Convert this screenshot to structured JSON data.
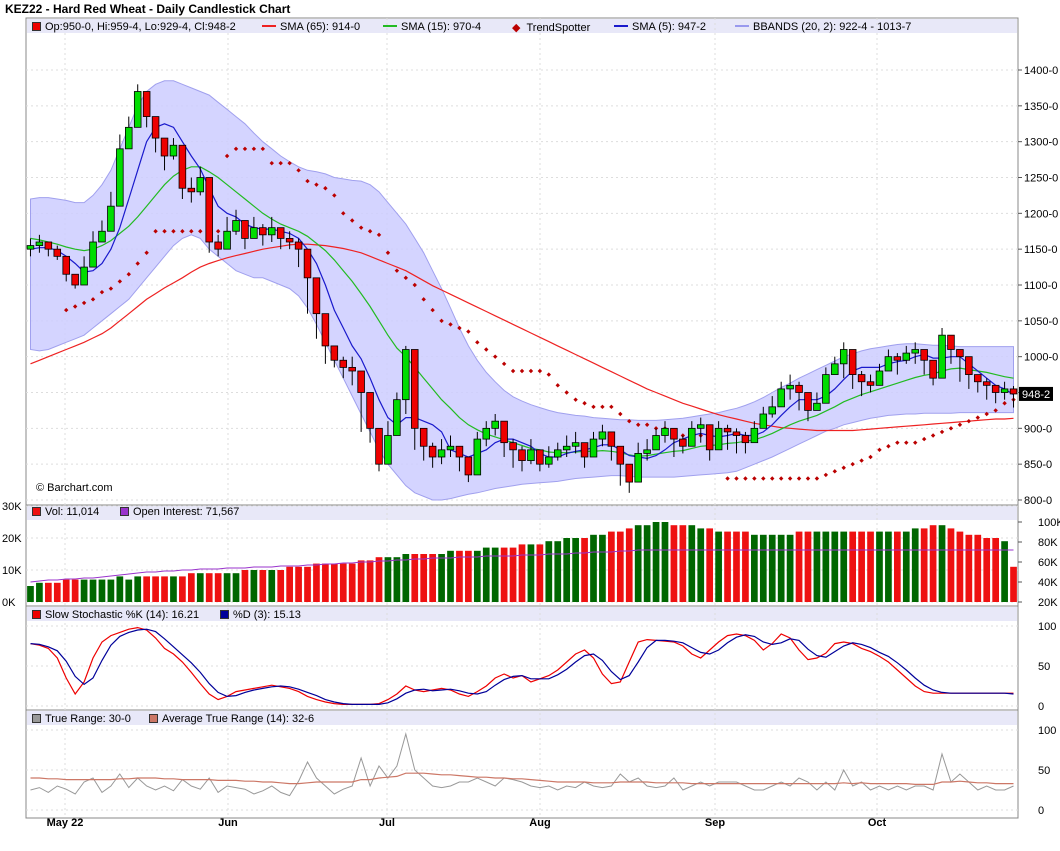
{
  "title": "KEZ22 - Hard Red Wheat - Daily Candlestick Chart",
  "watermark": "© Barchart.com",
  "legends": {
    "ohlc": "Op:950-0, Hi:959-4, Lo:929-4, Cl:948-2",
    "sma65": "SMA (65): 914-0",
    "sma15": "SMA (15): 970-4",
    "trendspotter": "TrendSpotter",
    "sma5": "SMA (5): 947-2",
    "bbands": "BBANDS (20, 2): 922-4 - 1013-7",
    "vol": "Vol: 11,014",
    "oi": "Open Interest: 71,567",
    "stochK": "Slow Stochastic %K (14): 16.21",
    "stochD": "%D (3): 15.13",
    "tr": "True Range: 30-0",
    "atr": "Average True Range (14): 32-6"
  },
  "last_price_tag": "948-2",
  "colors": {
    "up": "#00dd00",
    "down": "#ee0000",
    "sma65": "#ee2222",
    "sma15": "#22bb22",
    "sma5": "#1a1acc",
    "band": "#ccccff",
    "trend": "#bb0000",
    "volUp": "#006600",
    "volDown": "#ee1111",
    "oi": "#9933cc",
    "k": "#ee0000",
    "d": "#000099",
    "tr": "#999999",
    "atr": "#cc7766"
  },
  "chart_data": {
    "type": "candlestick",
    "dates_label": [
      "May 22",
      "Jun",
      "Jul",
      "Aug",
      "Sep",
      "Oct"
    ],
    "price_ylim": [
      800,
      1400
    ],
    "price_ticks": [
      "1400-0",
      "1350-0",
      "1300-0",
      "1250-0",
      "1200-0",
      "1150-0",
      "1100-0",
      "1050-0",
      "1000-0",
      "950-0",
      "900-0",
      "850-0",
      "800-0"
    ],
    "vol_ticks": [
      "30K",
      "20K",
      "10K",
      "0K"
    ],
    "oi_ticks": [
      "100K",
      "80K",
      "60K",
      "40K",
      "20K"
    ],
    "osc_ticks": [
      "100",
      "50",
      "0"
    ],
    "close": [
      1155,
      1160,
      1150,
      1140,
      1115,
      1100,
      1125,
      1160,
      1175,
      1210,
      1290,
      1320,
      1370,
      1335,
      1305,
      1280,
      1295,
      1235,
      1230,
      1250,
      1160,
      1150,
      1175,
      1190,
      1165,
      1180,
      1170,
      1180,
      1165,
      1160,
      1150,
      1110,
      1060,
      1015,
      995,
      985,
      980,
      950,
      900,
      850,
      890,
      940,
      1010,
      900,
      875,
      860,
      870,
      875,
      860,
      835,
      885,
      900,
      910,
      880,
      870,
      855,
      870,
      850,
      860,
      870,
      875,
      880,
      860,
      885,
      895,
      875,
      850,
      825,
      865,
      870,
      890,
      900,
      885,
      875,
      900,
      905,
      870,
      900,
      895,
      890,
      880,
      900,
      920,
      930,
      955,
      960,
      950,
      925,
      935,
      975,
      990,
      1010,
      975,
      965,
      960,
      980,
      1000,
      995,
      1005,
      1010,
      995,
      970,
      1030,
      1010,
      1000,
      975,
      965,
      960,
      950,
      955,
      948
    ],
    "high": [
      1165,
      1170,
      1160,
      1155,
      1125,
      1115,
      1140,
      1175,
      1190,
      1230,
      1310,
      1335,
      1380,
      1350,
      1320,
      1300,
      1305,
      1255,
      1250,
      1265,
      1180,
      1170,
      1195,
      1205,
      1185,
      1195,
      1185,
      1195,
      1180,
      1175,
      1165,
      1125,
      1075,
      1030,
      1010,
      1000,
      1000,
      965,
      910,
      900,
      910,
      950,
      1015,
      920,
      895,
      880,
      885,
      890,
      875,
      860,
      895,
      910,
      920,
      900,
      885,
      875,
      885,
      870,
      875,
      880,
      890,
      895,
      880,
      895,
      905,
      890,
      870,
      845,
      880,
      885,
      900,
      910,
      900,
      890,
      910,
      915,
      885,
      910,
      905,
      900,
      895,
      910,
      930,
      945,
      965,
      975,
      965,
      945,
      950,
      985,
      1000,
      1020,
      985,
      980,
      975,
      990,
      1010,
      1005,
      1015,
      1020,
      1005,
      990,
      1040,
      1025,
      1010,
      990,
      975,
      970,
      960,
      965,
      959
    ],
    "low": [
      1140,
      1145,
      1140,
      1135,
      1105,
      1095,
      1100,
      1145,
      1160,
      1195,
      1265,
      1300,
      1355,
      1320,
      1285,
      1260,
      1275,
      1220,
      1215,
      1225,
      1145,
      1140,
      1160,
      1170,
      1150,
      1165,
      1155,
      1160,
      1150,
      1150,
      1125,
      1060,
      1025,
      990,
      985,
      970,
      960,
      895,
      880,
      840,
      870,
      895,
      920,
      870,
      855,
      845,
      850,
      860,
      840,
      825,
      860,
      875,
      890,
      860,
      845,
      840,
      850,
      840,
      845,
      855,
      860,
      865,
      845,
      865,
      875,
      855,
      820,
      810,
      840,
      855,
      870,
      880,
      860,
      865,
      880,
      880,
      855,
      875,
      870,
      865,
      865,
      885,
      905,
      915,
      930,
      940,
      925,
      910,
      925,
      950,
      975,
      970,
      955,
      945,
      950,
      960,
      985,
      975,
      990,
      990,
      975,
      960,
      990,
      990,
      965,
      955,
      950,
      940,
      935,
      940,
      929
    ],
    "sma65": [
      990,
      995,
      1000,
      1005,
      1010,
      1015,
      1020,
      1026,
      1032,
      1040,
      1050,
      1060,
      1070,
      1080,
      1088,
      1096,
      1103,
      1110,
      1118,
      1125,
      1130,
      1134,
      1138,
      1141,
      1144,
      1147,
      1150,
      1152,
      1154,
      1156,
      1157,
      1157,
      1156,
      1155,
      1153,
      1151,
      1148,
      1145,
      1140,
      1135,
      1130,
      1125,
      1120,
      1113,
      1106,
      1099,
      1093,
      1087,
      1081,
      1075,
      1069,
      1063,
      1057,
      1051,
      1045,
      1039,
      1033,
      1027,
      1021,
      1015,
      1009,
      1003,
      997,
      991,
      985,
      979,
      973,
      967,
      961,
      955,
      950,
      945,
      940,
      935,
      931,
      927,
      923,
      919,
      916,
      913,
      910,
      907,
      905,
      903,
      901,
      900,
      899,
      898,
      897,
      897,
      897,
      897,
      897,
      898,
      899,
      900,
      901,
      902,
      903,
      904,
      905,
      906,
      907,
      908,
      909,
      910,
      911,
      912,
      913,
      913,
      914
    ],
    "sma15": [
      1165,
      1163,
      1160,
      1157,
      1153,
      1150,
      1148,
      1150,
      1155,
      1162,
      1172,
      1182,
      1195,
      1210,
      1225,
      1240,
      1252,
      1260,
      1265,
      1265,
      1258,
      1250,
      1240,
      1230,
      1220,
      1210,
      1200,
      1192,
      1185,
      1180,
      1175,
      1168,
      1158,
      1148,
      1135,
      1120,
      1105,
      1088,
      1070,
      1050,
      1030,
      1012,
      1000,
      985,
      970,
      955,
      940,
      928,
      915,
      905,
      898,
      892,
      888,
      884,
      880,
      876,
      872,
      870,
      867,
      866,
      866,
      867,
      868,
      868,
      869,
      868,
      866,
      863,
      861,
      862,
      864,
      866,
      868,
      869,
      872,
      875,
      876,
      877,
      879,
      880,
      882,
      884,
      888,
      893,
      899,
      905,
      910,
      914,
      918,
      924,
      930,
      937,
      942,
      947,
      951,
      955,
      959,
      963,
      967,
      971,
      974,
      976,
      980,
      983,
      984,
      982,
      980,
      978,
      975,
      972,
      970
    ],
    "sma5": [
      1150,
      1152,
      1152,
      1148,
      1140,
      1130,
      1118,
      1120,
      1130,
      1150,
      1180,
      1220,
      1260,
      1300,
      1320,
      1325,
      1320,
      1300,
      1280,
      1262,
      1235,
      1210,
      1200,
      1195,
      1185,
      1180,
      1178,
      1178,
      1175,
      1172,
      1165,
      1150,
      1130,
      1100,
      1065,
      1040,
      1015,
      997,
      970,
      940,
      915,
      905,
      915,
      915,
      910,
      905,
      895,
      870,
      865,
      860,
      865,
      870,
      880,
      885,
      885,
      880,
      875,
      865,
      860,
      860,
      865,
      868,
      870,
      873,
      877,
      877,
      870,
      862,
      860,
      858,
      862,
      870,
      880,
      885,
      890,
      893,
      890,
      888,
      890,
      893,
      890,
      890,
      895,
      905,
      918,
      930,
      940,
      940,
      940,
      945,
      955,
      968,
      980,
      985,
      985,
      985,
      990,
      993,
      995,
      1000,
      1003,
      998,
      998,
      1000,
      1000,
      990,
      980,
      970,
      960,
      955,
      947
    ],
    "bb_upper": [
      1220,
      1222,
      1222,
      1220,
      1218,
      1215,
      1215,
      1225,
      1240,
      1260,
      1290,
      1320,
      1350,
      1370,
      1380,
      1385,
      1385,
      1380,
      1375,
      1370,
      1365,
      1355,
      1345,
      1335,
      1325,
      1312,
      1300,
      1290,
      1280,
      1272,
      1265,
      1260,
      1258,
      1255,
      1250,
      1248,
      1246,
      1245,
      1240,
      1230,
      1215,
      1200,
      1185,
      1165,
      1145,
      1120,
      1095,
      1068,
      1040,
      1015,
      995,
      978,
      965,
      953,
      944,
      938,
      933,
      929,
      925,
      922,
      920,
      918,
      917,
      915,
      914,
      913,
      912,
      912,
      911,
      911,
      911,
      912,
      913,
      914,
      916,
      918,
      920,
      922,
      925,
      928,
      932,
      937,
      943,
      950,
      957,
      963,
      970,
      976,
      982,
      988,
      994,
      1000,
      1004,
      1008,
      1011,
      1013,
      1015,
      1017,
      1018,
      1018,
      1017,
      1016,
      1016,
      1015,
      1014,
      1014,
      1014,
      1014,
      1014,
      1014,
      1014
    ],
    "bb_lower": [
      1010,
      1008,
      1010,
      1015,
      1020,
      1025,
      1030,
      1040,
      1050,
      1060,
      1070,
      1080,
      1095,
      1110,
      1125,
      1140,
      1155,
      1165,
      1170,
      1165,
      1150,
      1140,
      1130,
      1120,
      1115,
      1110,
      1110,
      1105,
      1100,
      1095,
      1085,
      1068,
      1045,
      1020,
      995,
      970,
      945,
      920,
      895,
      870,
      850,
      835,
      820,
      810,
      805,
      800,
      800,
      802,
      805,
      808,
      810,
      813,
      816,
      818,
      820,
      822,
      823,
      824,
      825,
      826,
      828,
      830,
      831,
      832,
      833,
      834,
      834,
      833,
      832,
      832,
      832,
      832,
      832,
      833,
      834,
      835,
      836,
      837,
      838,
      840,
      845,
      850,
      855,
      860,
      866,
      872,
      878,
      884,
      890,
      896,
      900,
      905,
      908,
      911,
      914,
      916,
      918,
      919,
      920,
      920,
      921,
      921,
      921,
      921,
      922,
      922,
      922,
      922,
      922,
      922,
      922
    ],
    "trend": [
      null,
      null,
      null,
      null,
      1065,
      1070,
      1075,
      1080,
      1090,
      1095,
      1105,
      1115,
      1130,
      1145,
      1175,
      1175,
      1175,
      1175,
      1175,
      1175,
      1175,
      1175,
      1280,
      1290,
      1290,
      1290,
      1290,
      1270,
      1270,
      1270,
      1260,
      1245,
      1240,
      1235,
      1225,
      1200,
      1190,
      1180,
      1175,
      1170,
      1145,
      1120,
      1110,
      1100,
      1080,
      1065,
      1050,
      1045,
      1040,
      1035,
      1020,
      1010,
      1000,
      990,
      980,
      980,
      980,
      980,
      975,
      960,
      950,
      940,
      935,
      930,
      930,
      930,
      920,
      910,
      905,
      905,
      900,
      900,
      890,
      890,
      890,
      890,
      890,
      885,
      830,
      830,
      830,
      830,
      830,
      830,
      830,
      830,
      830,
      830,
      830,
      835,
      840,
      845,
      850,
      855,
      860,
      870,
      875,
      880,
      880,
      880,
      885,
      890,
      895,
      900,
      905,
      910,
      915,
      920,
      925,
      935,
      940
    ],
    "volume": [
      5,
      6,
      6,
      6,
      7,
      7,
      7,
      7,
      7,
      7,
      8,
      7,
      8,
      8,
      8,
      8,
      8,
      8,
      9,
      9,
      9,
      9,
      9,
      9,
      10,
      10,
      10,
      10,
      10,
      11,
      11,
      11,
      12,
      12,
      12,
      12,
      12,
      13,
      13,
      14,
      14,
      14,
      15,
      15,
      15,
      15,
      15,
      16,
      16,
      16,
      16,
      17,
      17,
      17,
      17,
      18,
      18,
      18,
      19,
      19,
      20,
      20,
      20,
      21,
      21,
      22,
      22,
      23,
      24,
      24,
      25,
      25,
      24,
      24,
      24,
      23,
      23,
      22,
      22,
      22,
      22,
      21,
      21,
      21,
      21,
      21,
      22,
      22,
      22,
      22,
      22,
      22,
      22,
      22,
      22,
      22,
      22,
      22,
      22,
      23,
      23,
      24,
      24,
      23,
      22,
      21,
      21,
      20,
      20,
      19,
      11
    ],
    "open_interest": [
      40,
      41,
      42,
      42,
      43,
      43,
      44,
      44,
      45,
      46,
      47,
      48,
      49,
      50,
      50,
      51,
      51,
      52,
      52,
      53,
      53,
      53,
      54,
      54,
      54,
      55,
      55,
      55,
      56,
      56,
      56,
      57,
      57,
      58,
      58,
      59,
      59,
      60,
      60,
      61,
      61,
      62,
      62,
      63,
      63,
      64,
      64,
      64,
      65,
      65,
      65,
      66,
      66,
      66,
      66,
      67,
      67,
      67,
      68,
      68,
      68,
      69,
      69,
      70,
      70,
      70,
      71,
      71,
      72,
      72,
      72,
      72,
      72,
      72,
      72,
      72,
      72,
      72,
      72,
      72,
      72,
      72,
      72,
      72,
      72,
      72,
      72,
      72,
      72,
      72,
      72,
      72,
      72,
      72,
      72,
      72,
      72,
      72,
      72,
      72,
      72,
      72,
      72,
      72,
      72,
      72,
      72,
      72,
      72,
      72,
      72
    ],
    "stochK": [
      78,
      76,
      72,
      60,
      35,
      15,
      30,
      60,
      80,
      88,
      92,
      96,
      98,
      95,
      85,
      72,
      65,
      55,
      42,
      28,
      15,
      8,
      12,
      18,
      20,
      22,
      24,
      26,
      24,
      22,
      18,
      12,
      8,
      5,
      3,
      2,
      2,
      2,
      2,
      3,
      8,
      15,
      25,
      20,
      18,
      20,
      22,
      20,
      15,
      12,
      18,
      25,
      35,
      40,
      35,
      38,
      30,
      34,
      38,
      45,
      55,
      65,
      70,
      60,
      40,
      28,
      30,
      55,
      80,
      83,
      82,
      81,
      80,
      75,
      65,
      60,
      70,
      80,
      88,
      90,
      88,
      82,
      70,
      78,
      90,
      85,
      70,
      58,
      60,
      66,
      78,
      80,
      78,
      72,
      68,
      62,
      55,
      45,
      35,
      25,
      18,
      16,
      16,
      16,
      16,
      16,
      16,
      16,
      16,
      16,
      16
    ],
    "stochD": [
      78,
      77,
      74,
      69,
      56,
      37,
      27,
      35,
      57,
      76,
      87,
      92,
      95,
      96,
      93,
      84,
      74,
      64,
      54,
      42,
      28,
      17,
      12,
      13,
      17,
      20,
      22,
      24,
      25,
      24,
      21,
      17,
      13,
      8,
      5,
      3,
      2,
      2,
      2,
      2,
      4,
      9,
      16,
      20,
      21,
      19,
      20,
      21,
      19,
      16,
      15,
      18,
      26,
      33,
      37,
      38,
      34,
      34,
      34,
      39,
      46,
      55,
      63,
      65,
      57,
      43,
      33,
      38,
      55,
      73,
      82,
      82,
      81,
      79,
      73,
      67,
      65,
      70,
      79,
      86,
      89,
      87,
      80,
      77,
      79,
      84,
      82,
      71,
      63,
      61,
      68,
      75,
      79,
      77,
      73,
      67,
      62,
      54,
      45,
      35,
      26,
      20,
      17,
      16,
      16,
      16,
      16,
      16,
      16,
      16,
      15
    ],
    "true_range": [
      25,
      28,
      22,
      30,
      26,
      20,
      35,
      40,
      22,
      30,
      45,
      28,
      40,
      30,
      25,
      30,
      24,
      38,
      30,
      26,
      40,
      22,
      30,
      28,
      26,
      20,
      24,
      30,
      22,
      18,
      36,
      60,
      40,
      30,
      20,
      26,
      30,
      65,
      30,
      55,
      40,
      55,
      95,
      50,
      40,
      30,
      28,
      30,
      35,
      35,
      40,
      35,
      30,
      40,
      38,
      35,
      30,
      28,
      30,
      25,
      30,
      28,
      35,
      30,
      28,
      30,
      45,
      35,
      40,
      30,
      28,
      30,
      40,
      25,
      30,
      35,
      30,
      35,
      35,
      35,
      30,
      25,
      25,
      30,
      35,
      30,
      40,
      35,
      25,
      35,
      25,
      50,
      30,
      35,
      25,
      30,
      25,
      30,
      25,
      30,
      30,
      25,
      70,
      35,
      45,
      35,
      25,
      30,
      25,
      25,
      30
    ],
    "atr": [
      40,
      40,
      39,
      39,
      38,
      38,
      38,
      38,
      38,
      38,
      39,
      39,
      40,
      40,
      40,
      39,
      39,
      38,
      38,
      38,
      38,
      37,
      37,
      37,
      36,
      36,
      35,
      35,
      34,
      33,
      33,
      34,
      35,
      35,
      35,
      35,
      35,
      38,
      38,
      40,
      41,
      42,
      46,
      46,
      46,
      45,
      44,
      44,
      43,
      42,
      41,
      41,
      40,
      40,
      39,
      39,
      38,
      37,
      36,
      35,
      35,
      35,
      35,
      34,
      34,
      34,
      35,
      35,
      35,
      35,
      34,
      34,
      34,
      34,
      33,
      33,
      33,
      33,
      33,
      33,
      33,
      33,
      33,
      33,
      33,
      33,
      33,
      33,
      33,
      33,
      33,
      34,
      33,
      34,
      33,
      33,
      33,
      33,
      33,
      32,
      32,
      32,
      35,
      35,
      36,
      35,
      34,
      34,
      33,
      33,
      33
    ]
  }
}
